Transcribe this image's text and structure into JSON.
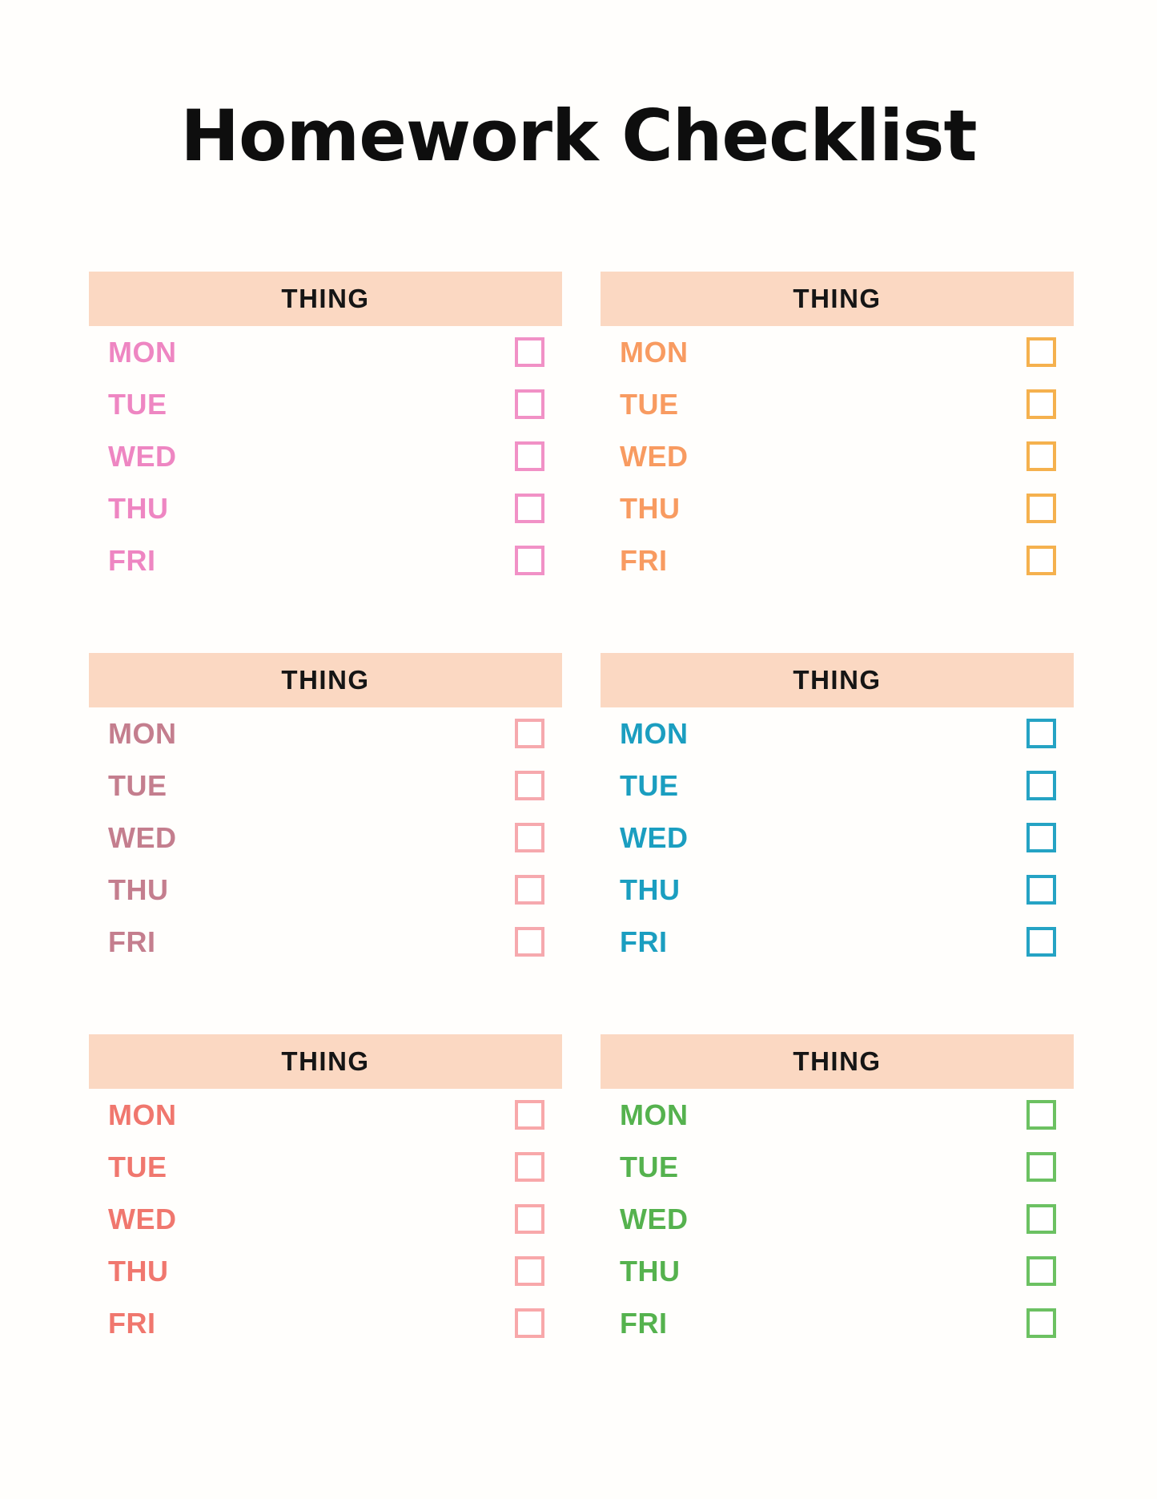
{
  "page": {
    "title": "Homework Checklist",
    "background_color": "#FFFEFC"
  },
  "shared": {
    "header_bg_color": "#FBD8C2",
    "header_text_color": "#151515",
    "days": [
      "MON",
      "TUE",
      "WED",
      "THU",
      "FRI"
    ],
    "checkbox_checked": false
  },
  "cards": [
    {
      "position": "top-left",
      "header_label": "THING",
      "day_label_color": "#EE86C2",
      "checkbox_border_color": "#F191C6"
    },
    {
      "position": "top-right",
      "header_label": "THING",
      "day_label_color": "#F89B61",
      "checkbox_border_color": "#F5B14E"
    },
    {
      "position": "middle-left",
      "header_label": "THING",
      "day_label_color": "#C47E8E",
      "checkbox_border_color": "#F6A9AE"
    },
    {
      "position": "middle-right",
      "header_label": "THING",
      "day_label_color": "#1B9EC0",
      "checkbox_border_color": "#25A3C4"
    },
    {
      "position": "bottom-left",
      "header_label": "THING",
      "day_label_color": "#F0776E",
      "checkbox_border_color": "#F8A8AA"
    },
    {
      "position": "bottom-right",
      "header_label": "THING",
      "day_label_color": "#55B24E",
      "checkbox_border_color": "#6CC162"
    }
  ]
}
